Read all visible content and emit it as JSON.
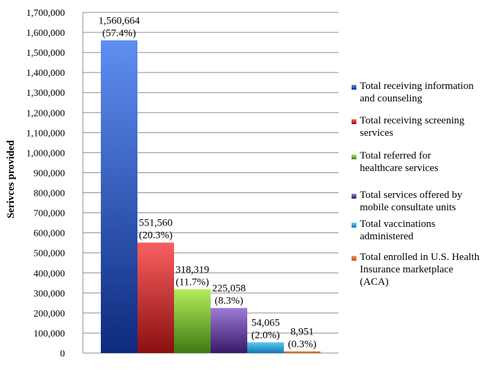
{
  "chart_data": {
    "type": "bar",
    "ylabel": "Serivces provided",
    "ylim": [
      0,
      1700000
    ],
    "ytick_step": 100000,
    "yticks": [
      "0",
      "100,000",
      "200,000",
      "300,000",
      "400,000",
      "500,000",
      "600,000",
      "700,000",
      "800,000",
      "900,000",
      "1,000,000",
      "1,100,000",
      "1,200,000",
      "1,300,000",
      "1,400,000",
      "1,500,000",
      "1,600,000",
      "1,700,000"
    ],
    "grid": true,
    "legend_position": "right",
    "series": [
      {
        "name": "Total receiving information and counseling",
        "legend_lines": [
          "Total receiving information",
          "and counseling"
        ],
        "value": 1560664,
        "value_label": "1,560,664",
        "pct_label": "(57.4%)",
        "color_top": "#5f8ff2",
        "color_bottom": "#0d2a7e"
      },
      {
        "name": "Total receiving screening services",
        "legend_lines": [
          "Total receiving screening",
          "services"
        ],
        "value": 551560,
        "value_label": "551,560",
        "pct_label": "(20.3%)",
        "color_top": "#f86060",
        "color_bottom": "#8b0f0f"
      },
      {
        "name": "Total referred for healthcare services",
        "legend_lines": [
          "Total referred for",
          "healthcare services"
        ],
        "value": 318319,
        "value_label": "318,319",
        "pct_label": "(11.7%)",
        "color_top": "#b2ec5c",
        "color_bottom": "#3f7a12"
      },
      {
        "name": "Total services offered by mobile consultate units",
        "legend_lines": [
          "Total services offered by",
          "mobile consultate units"
        ],
        "value": 225058,
        "value_label": "225,058",
        "pct_label": "(8.3%)",
        "color_top": "#9e7ad8",
        "color_bottom": "#361a66"
      },
      {
        "name": "Total vaccinations administered",
        "legend_lines": [
          "Total vaccinations",
          "administered"
        ],
        "value": 54065,
        "value_label": "54,065",
        "pct_label": "(2.0%)",
        "color_top": "#5cc9f2",
        "color_bottom": "#1478b4"
      },
      {
        "name": "Total enrolled in U.S. Health Insurance marketplace (ACA)",
        "legend_lines": [
          "Total enrolled in U.S. Health",
          "Insurance marketplace",
          "(ACA)"
        ],
        "value": 8951,
        "value_label": "8,951",
        "pct_label": "(0.3%)",
        "color_top": "#f59a4e",
        "color_bottom": "#c04e0a"
      }
    ]
  }
}
